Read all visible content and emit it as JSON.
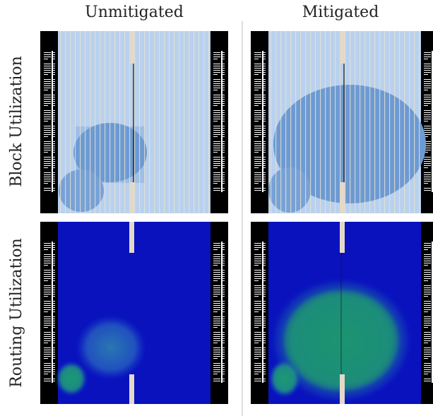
{
  "columns": [
    "Unmitigated",
    "Mitigated"
  ],
  "rows": [
    "Block Utilization",
    "Routing Utilization"
  ]
}
